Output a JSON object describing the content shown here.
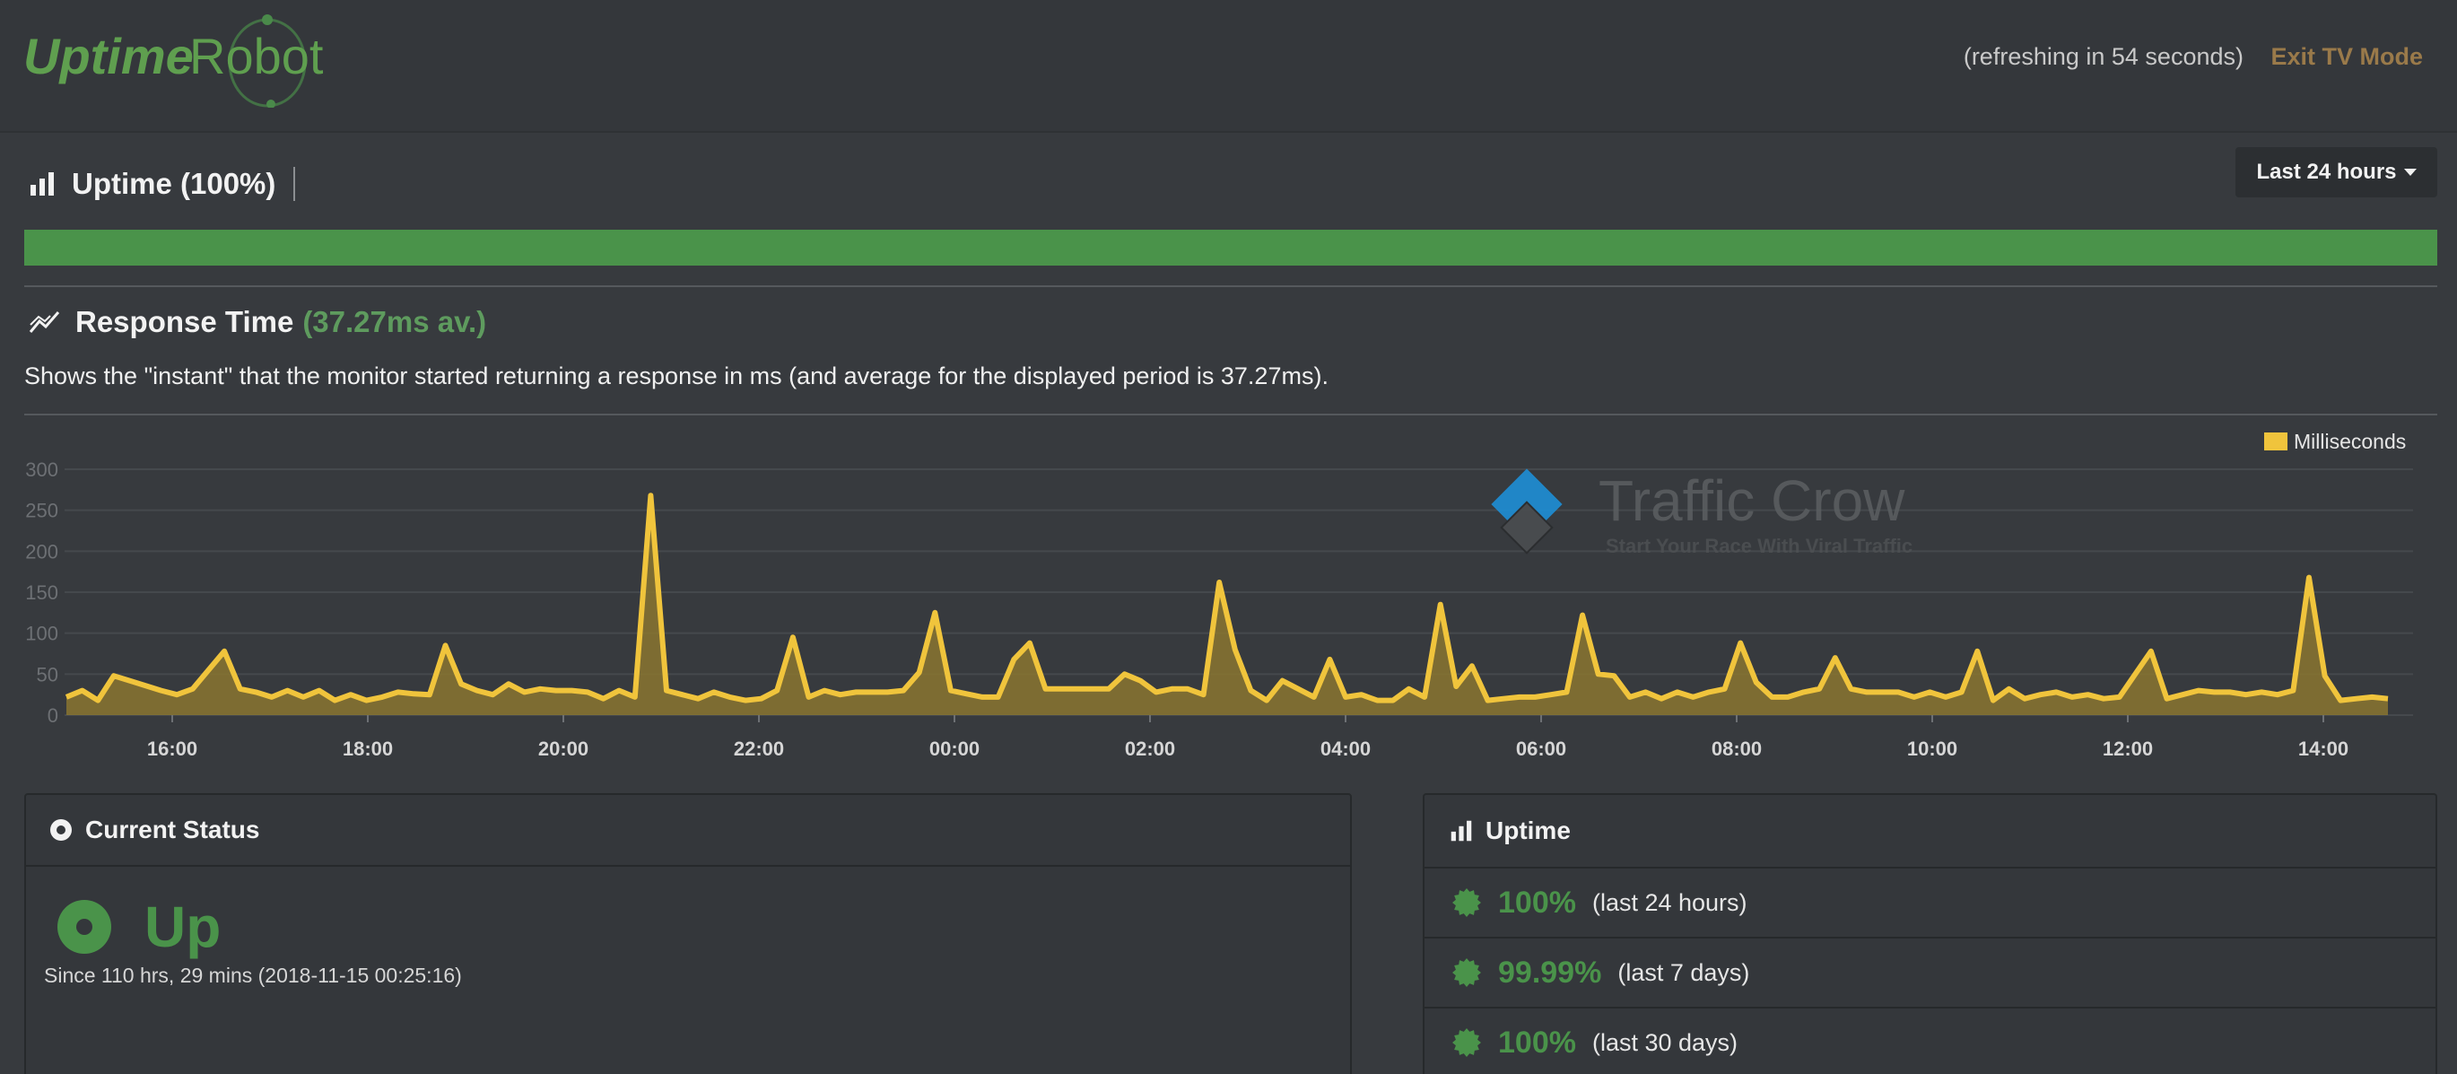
{
  "header": {
    "logo_part1": "Uptime",
    "logo_part2": "Robot",
    "refresh_text": "(refreshing in 54 seconds)",
    "exit_label": "Exit TV Mode"
  },
  "uptime": {
    "title": "Uptime (100%)",
    "range_label": "Last 24 hours",
    "bar_percent": 100
  },
  "response_time": {
    "title": "Response Time",
    "avg": "(37.27ms av.)",
    "description": "Shows the \"instant\" that the monitor started returning a response in ms (and average for the displayed period is 37.27ms)."
  },
  "watermark": {
    "name": "Traffic Crow",
    "tagline": "Start Your Race With Viral Traffic"
  },
  "chart_data": {
    "type": "area",
    "series": [
      {
        "name": "Milliseconds",
        "color": "#f0c43c"
      }
    ],
    "legend": "top-right",
    "grid": true,
    "ylim": [
      0,
      300
    ],
    "yticks": [
      "0",
      "50",
      "100",
      "150",
      "200",
      "250",
      "300"
    ],
    "xticks": [
      "16:00",
      "18:00",
      "20:00",
      "22:00",
      "00:00",
      "02:00",
      "04:00",
      "06:00",
      "08:00",
      "10:00",
      "12:00",
      "14:00"
    ],
    "values": [
      22,
      30,
      18,
      48,
      42,
      36,
      30,
      25,
      32,
      55,
      78,
      32,
      28,
      22,
      30,
      22,
      30,
      18,
      25,
      18,
      22,
      28,
      26,
      25,
      85,
      38,
      30,
      25,
      38,
      28,
      32,
      30,
      30,
      28,
      20,
      30,
      22,
      268,
      30,
      25,
      20,
      28,
      22,
      18,
      20,
      30,
      95,
      22,
      30,
      25,
      28,
      28,
      28,
      30,
      52,
      125,
      30,
      26,
      22,
      22,
      68,
      88,
      32,
      32,
      32,
      32,
      32,
      50,
      42,
      28,
      32,
      32,
      25,
      162,
      80,
      30,
      18,
      42,
      32,
      22,
      68,
      22,
      25,
      18,
      18,
      32,
      22,
      135,
      35,
      60,
      18,
      20,
      22,
      22,
      25,
      28,
      122,
      50,
      48,
      22,
      28,
      20,
      28,
      22,
      28,
      32,
      88,
      40,
      22,
      22,
      28,
      32,
      70,
      32,
      28,
      28,
      28,
      22,
      28,
      22,
      28,
      78,
      18,
      32,
      20,
      25,
      28,
      22,
      25,
      20,
      22,
      50,
      78,
      20,
      25,
      30,
      28,
      28,
      25,
      28,
      25,
      30,
      168,
      48,
      18,
      20,
      22,
      20
    ]
  },
  "current_status": {
    "title": "Current Status",
    "status": "Up",
    "since": "Since 110 hrs, 29 mins (2018-11-15 00:25:16)"
  },
  "uptime_panel": {
    "title": "Uptime",
    "rows": [
      {
        "pct": "100%",
        "period": "(last 24 hours)"
      },
      {
        "pct": "99.99%",
        "period": "(last 7 days)"
      },
      {
        "pct": "100%",
        "period": "(last 30 days)"
      }
    ]
  },
  "colors": {
    "background": "#373a3e",
    "green": "#4a934a",
    "chart_line": "#f0c43c",
    "exit_link": "#9a7a4a"
  }
}
